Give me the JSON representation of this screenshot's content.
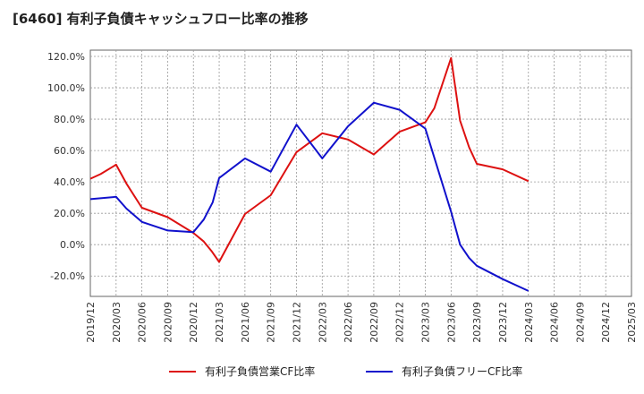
{
  "chart_title": "[6460]  有利子負債キャッシュフロー比率の推移",
  "chart_data": {
    "type": "line",
    "title": "[6460]  有利子負債キャッシュフロー比率の推移",
    "xlabel": "",
    "ylabel": "",
    "ylim": [
      -33,
      124
    ],
    "y_ticks": [
      120,
      100,
      80,
      60,
      40,
      20,
      0,
      -20
    ],
    "y_tick_labels": [
      "120.0%",
      "100.0%",
      "80.0%",
      "60.0%",
      "40.0%",
      "20.0%",
      "0.0%",
      "-20.0%"
    ],
    "x_tick_labels": [
      "2019/12",
      "2020/03",
      "2020/06",
      "2020/09",
      "2020/12",
      "2021/03",
      "2021/06",
      "2021/09",
      "2021/12",
      "2022/03",
      "2022/06",
      "2022/09",
      "2022/12",
      "2023/03",
      "2023/06",
      "2023/09",
      "2023/12",
      "2024/03",
      "2024/06",
      "2024/09",
      "2024/12",
      "2025/03"
    ],
    "grid": true,
    "legend_position": "bottom",
    "series": [
      {
        "name": "有利子負債営業CF比率",
        "color": "#dd1111",
        "points": [
          [
            0,
            42
          ],
          [
            0.4,
            45
          ],
          [
            1,
            51
          ],
          [
            1.4,
            39
          ],
          [
            2,
            23.5
          ],
          [
            3,
            17.5
          ],
          [
            4,
            7.5
          ],
          [
            4.4,
            2
          ],
          [
            4.7,
            -4
          ],
          [
            5,
            -11
          ],
          [
            6,
            19.5
          ],
          [
            7,
            31.5
          ],
          [
            8,
            59
          ],
          [
            9,
            71
          ],
          [
            10,
            67
          ],
          [
            11,
            57.5
          ],
          [
            12,
            72
          ],
          [
            13,
            78
          ],
          [
            13.35,
            87
          ],
          [
            14,
            119
          ],
          [
            14.35,
            79
          ],
          [
            14.7,
            62
          ],
          [
            15,
            51.5
          ],
          [
            16,
            48
          ],
          [
            17,
            40.5
          ]
        ]
      },
      {
        "name": "有利子負債フリーCF比率",
        "color": "#1111cc",
        "points": [
          [
            0,
            29
          ],
          [
            1,
            30.5
          ],
          [
            1.4,
            23
          ],
          [
            2,
            14.5
          ],
          [
            3,
            9
          ],
          [
            4,
            8
          ],
          [
            4.4,
            16
          ],
          [
            4.75,
            27
          ],
          [
            5,
            42.5
          ],
          [
            6,
            55
          ],
          [
            7,
            46.5
          ],
          [
            8,
            76.5
          ],
          [
            9,
            55
          ],
          [
            10,
            75.5
          ],
          [
            11,
            90.5
          ],
          [
            12,
            86
          ],
          [
            12.5,
            80
          ],
          [
            13,
            74
          ],
          [
            14,
            21
          ],
          [
            14.35,
            0
          ],
          [
            14.7,
            -8.5
          ],
          [
            15,
            -13.5
          ],
          [
            16,
            -22
          ],
          [
            17,
            -29.5
          ]
        ]
      }
    ]
  }
}
